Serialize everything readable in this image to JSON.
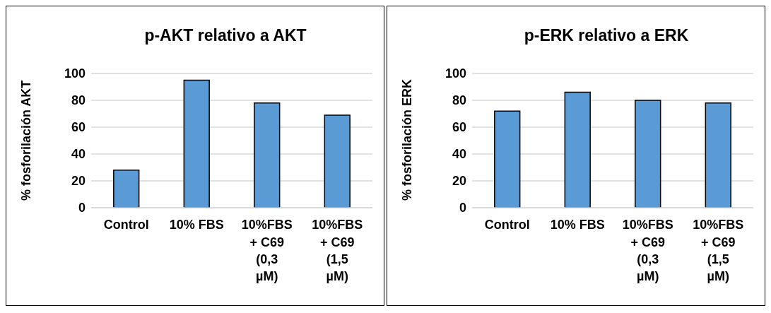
{
  "chart_data": [
    {
      "type": "bar",
      "title": "p-AKT relativo a AKT",
      "ylabel": "% fosforilación AKT",
      "categories": [
        "Control",
        "10% FBS",
        "10%FBS + C69 (0,3 µM)",
        "10%FBS + C69 (1,5 µM)"
      ],
      "values": [
        28,
        95,
        78,
        69
      ],
      "color": "#5b9bd5",
      "ylim": [
        0,
        100
      ],
      "yticks": [
        0,
        20,
        40,
        60,
        80,
        100
      ],
      "grid": "y"
    },
    {
      "type": "bar",
      "title": "p-ERK relativo a ERK",
      "ylabel": "% fosforilación ERK",
      "categories": [
        "Control",
        "10% FBS",
        "10%FBS + C69 (0,3 µM)",
        "10%FBS + C69 (1,5 µM)"
      ],
      "values": [
        72,
        86,
        80,
        78
      ],
      "color": "#5b9bd5",
      "ylim": [
        0,
        100
      ],
      "yticks": [
        0,
        20,
        40,
        60,
        80,
        100
      ],
      "grid": "y"
    }
  ]
}
